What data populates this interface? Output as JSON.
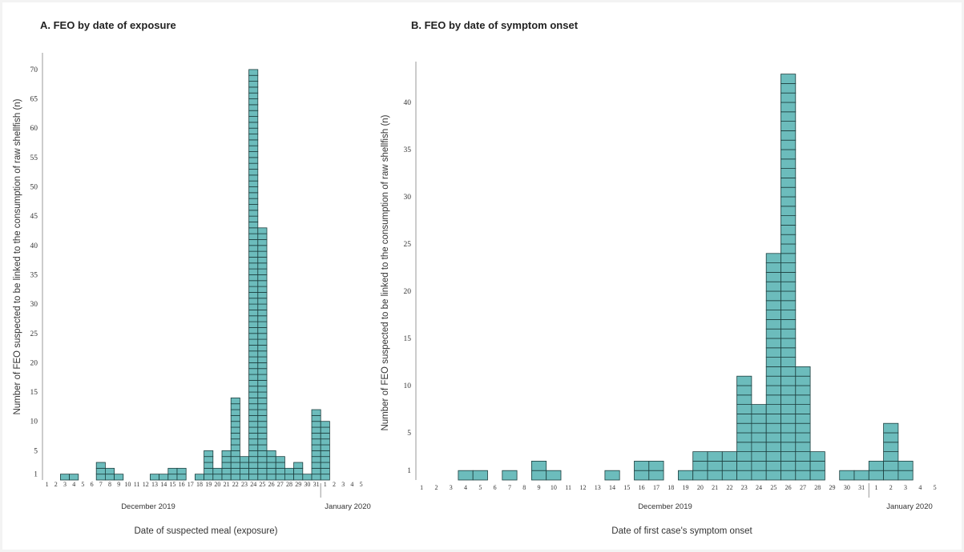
{
  "chart_data": [
    {
      "type": "bar",
      "title": "A. FEO by date of exposure",
      "xlabel": "Date of suspected meal (exposure)",
      "ylabel": "Number of FEO suspected to be linked to the consumption of raw shellfish (n)",
      "month_labels": [
        "December 2019",
        "January 2020"
      ],
      "categories": [
        "1",
        "2",
        "3",
        "4",
        "5",
        "6",
        "7",
        "8",
        "9",
        "10",
        "11",
        "12",
        "13",
        "14",
        "15",
        "16",
        "17",
        "18",
        "19",
        "20",
        "21",
        "22",
        "23",
        "24",
        "25",
        "26",
        "27",
        "28",
        "29",
        "30",
        "31",
        "1",
        "2",
        "3",
        "4",
        "5"
      ],
      "values": [
        0,
        0,
        1,
        1,
        0,
        0,
        3,
        2,
        1,
        0,
        0,
        0,
        1,
        1,
        2,
        2,
        0,
        1,
        5,
        2,
        5,
        14,
        4,
        70,
        43,
        5,
        4,
        2,
        3,
        1,
        12,
        10,
        0,
        0,
        0,
        0
      ],
      "yticks": [
        1,
        5,
        10,
        15,
        20,
        25,
        30,
        35,
        40,
        45,
        50,
        55,
        60,
        65,
        70
      ],
      "ylim": [
        0,
        72
      ]
    },
    {
      "type": "bar",
      "title": "B. FEO by date of symptom onset",
      "xlabel": "Date of first case's symptom onset",
      "ylabel": "Number of FEO suspected to be linked to the consumption of raw shellfish (n)",
      "month_labels": [
        "December 2019",
        "January 2020"
      ],
      "categories": [
        "1",
        "2",
        "3",
        "4",
        "5",
        "6",
        "7",
        "8",
        "9",
        "10",
        "11",
        "12",
        "13",
        "14",
        "15",
        "16",
        "17",
        "18",
        "19",
        "20",
        "21",
        "22",
        "23",
        "24",
        "25",
        "26",
        "27",
        "28",
        "29",
        "30",
        "31",
        "1",
        "2",
        "3",
        "4",
        "5"
      ],
      "values": [
        0,
        0,
        0,
        1,
        1,
        0,
        1,
        0,
        2,
        1,
        0,
        0,
        0,
        1,
        0,
        2,
        2,
        0,
        1,
        3,
        3,
        3,
        11,
        8,
        24,
        43,
        12,
        3,
        0,
        1,
        1,
        2,
        6,
        2,
        0,
        0
      ],
      "yticks": [
        1,
        5,
        10,
        15,
        20,
        25,
        30,
        35,
        40
      ],
      "ylim": [
        0,
        45
      ]
    }
  ]
}
